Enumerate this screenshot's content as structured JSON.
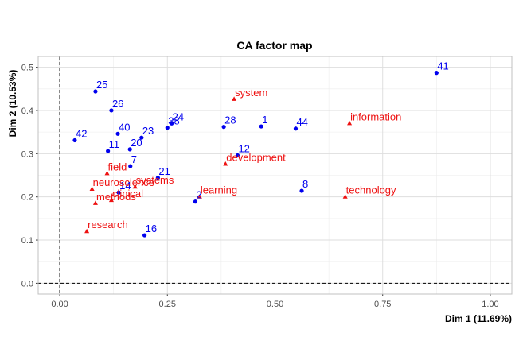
{
  "chart_data": {
    "type": "scatter",
    "title": "CA factor map",
    "xlabel": "Dim 1 (11.69%)",
    "ylabel": "Dim 2 (10.53%)",
    "xlim": [
      -0.05,
      1.05
    ],
    "ylim": [
      -0.025,
      0.525
    ],
    "xticks": [
      0.0,
      0.25,
      0.5,
      0.75,
      1.0
    ],
    "xtick_labels": [
      "0.00",
      "0.25",
      "0.50",
      "0.75",
      "1.00"
    ],
    "yticks": [
      0.0,
      0.1,
      0.2,
      0.3,
      0.4,
      0.5
    ],
    "ytick_labels": [
      "0.0",
      "0.1",
      "0.2",
      "0.3",
      "0.4",
      "0.5"
    ],
    "grid": true,
    "reference_lines": {
      "x": 0,
      "y": 0
    },
    "colors": {
      "rows": "#0000ee",
      "cols": "#ee1111",
      "grid": "#dedede",
      "panel_border": "#c0c0c0"
    },
    "series": [
      {
        "marker": "circle",
        "points": [
          {
            "label": "41",
            "x": 0.875,
            "y": 0.487
          },
          {
            "label": "25",
            "x": 0.083,
            "y": 0.444
          },
          {
            "label": "26",
            "x": 0.12,
            "y": 0.4
          },
          {
            "label": "44",
            "x": 0.548,
            "y": 0.358
          },
          {
            "label": "1",
            "x": 0.468,
            "y": 0.363
          },
          {
            "label": "28",
            "x": 0.381,
            "y": 0.362
          },
          {
            "label": "24",
            "x": 0.26,
            "y": 0.37
          },
          {
            "label": "38",
            "x": 0.25,
            "y": 0.36
          },
          {
            "label": "23",
            "x": 0.19,
            "y": 0.337
          },
          {
            "label": "40",
            "x": 0.135,
            "y": 0.346
          },
          {
            "label": "42",
            "x": 0.035,
            "y": 0.331
          },
          {
            "label": "20",
            "x": 0.163,
            "y": 0.31
          },
          {
            "label": "11",
            "x": 0.112,
            "y": 0.306
          },
          {
            "label": "12",
            "x": 0.413,
            "y": 0.296
          },
          {
            "label": "7",
            "x": 0.164,
            "y": 0.271
          },
          {
            "label": "21",
            "x": 0.228,
            "y": 0.244
          },
          {
            "label": "14",
            "x": 0.137,
            "y": 0.21
          },
          {
            "label": "8",
            "x": 0.562,
            "y": 0.214
          },
          {
            "label": "2",
            "x": 0.315,
            "y": 0.189
          },
          {
            "label": "16",
            "x": 0.197,
            "y": 0.111
          }
        ]
      },
      {
        "marker": "triangle",
        "points": [
          {
            "label": "system",
            "x": 0.405,
            "y": 0.426
          },
          {
            "label": "information",
            "x": 0.673,
            "y": 0.37
          },
          {
            "label": "development",
            "x": 0.385,
            "y": 0.276
          },
          {
            "label": "field",
            "x": 0.11,
            "y": 0.254
          },
          {
            "label": "systems",
            "x": 0.175,
            "y": 0.223
          },
          {
            "label": "neuroscience",
            "x": 0.075,
            "y": 0.218
          },
          {
            "label": "clinical",
            "x": 0.12,
            "y": 0.192
          },
          {
            "label": "methods",
            "x": 0.083,
            "y": 0.185
          },
          {
            "label": "learning",
            "x": 0.325,
            "y": 0.2
          },
          {
            "label": "technology",
            "x": 0.663,
            "y": 0.2
          },
          {
            "label": "research",
            "x": 0.063,
            "y": 0.12
          }
        ]
      }
    ]
  }
}
